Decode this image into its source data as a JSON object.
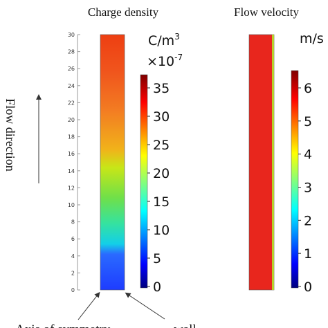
{
  "panels": {
    "charge": {
      "title": "Charge density",
      "unit_line1": "C/m",
      "unit_sup": "3",
      "unit_line2": "×10",
      "unit_exp": "-7",
      "axis_ticks": [
        "0",
        "2",
        "4",
        "6",
        "8",
        "10",
        "12",
        "14",
        "16",
        "18",
        "20",
        "22",
        "24",
        "26",
        "28",
        "30"
      ],
      "colorbar_ticks": [
        "0",
        "5",
        "10",
        "15",
        "20",
        "25",
        "30",
        "35"
      ]
    },
    "velocity": {
      "title": "Flow velocity",
      "unit": "m/s",
      "colorbar_ticks": [
        "0",
        "1",
        "2",
        "3",
        "4",
        "5",
        "6"
      ]
    }
  },
  "annotations": {
    "flow_direction": "Flow direction",
    "axis_of_symmetry": "Axis of symmetry",
    "wall": "wall"
  },
  "colors": {
    "jet": [
      "#00007f",
      "#0000ff",
      "#007fff",
      "#00ffff",
      "#7fff7f",
      "#ffff00",
      "#ff7f00",
      "#ff0000",
      "#7f0000"
    ],
    "charge_column": [
      "#1e3cff",
      "#2a6aff",
      "#13cfe8",
      "#35e2a0",
      "#6fe04a",
      "#c8e617",
      "#f1b21a",
      "#f37d22",
      "#f0561d",
      "#ee3f12"
    ],
    "velocity_column": "#e8261d",
    "velocity_wall": "#b7d12c"
  }
}
